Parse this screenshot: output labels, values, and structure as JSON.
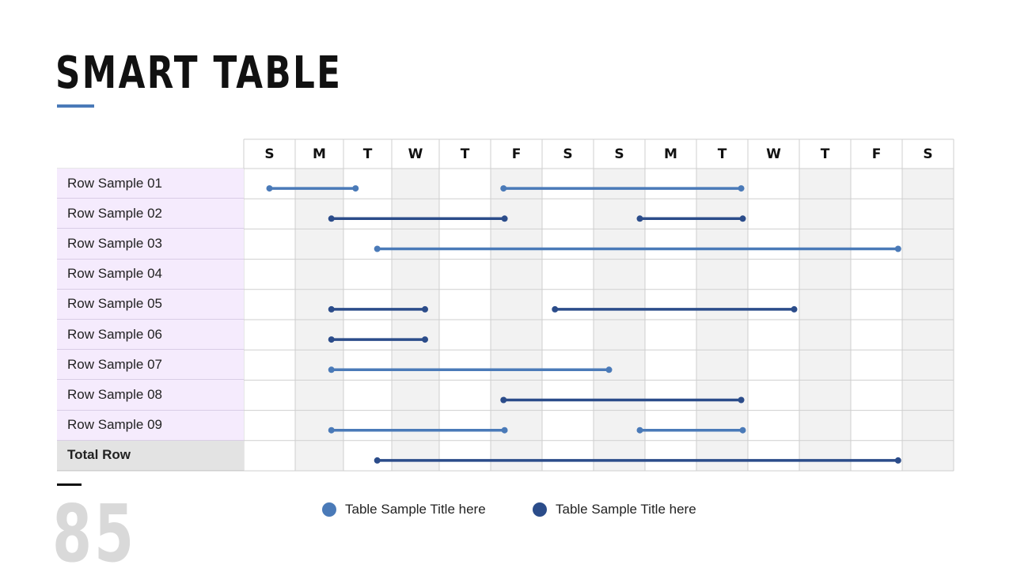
{
  "title": "SMART TABLE",
  "page_number": "85",
  "days": [
    "S",
    "M",
    "T",
    "W",
    "T",
    "F",
    "S",
    "S",
    "M",
    "T",
    "W",
    "T",
    "F",
    "S"
  ],
  "rows": [
    {
      "label": "Row Sample 01",
      "segments": [
        {
          "from": 0.5,
          "to": 2.25,
          "color": "light"
        },
        {
          "from": 5.25,
          "to": 9.87,
          "color": "light"
        }
      ]
    },
    {
      "label": "Row Sample 02",
      "segments": [
        {
          "from": 1.75,
          "to": 5.27,
          "color": "dark"
        },
        {
          "from": 7.9,
          "to": 9.9,
          "color": "dark"
        }
      ]
    },
    {
      "label": "Row Sample 03",
      "segments": [
        {
          "from": 2.7,
          "to": 12.92,
          "color": "light"
        }
      ]
    },
    {
      "label": "Row Sample 04",
      "segments": []
    },
    {
      "label": "Row Sample 05",
      "segments": [
        {
          "from": 1.75,
          "to": 3.7,
          "color": "dark"
        },
        {
          "from": 6.25,
          "to": 10.9,
          "color": "dark"
        }
      ]
    },
    {
      "label": "Row Sample 06",
      "segments": [
        {
          "from": 1.75,
          "to": 3.7,
          "color": "dark"
        }
      ]
    },
    {
      "label": "Row Sample 07",
      "segments": [
        {
          "from": 1.75,
          "to": 7.3,
          "color": "light"
        }
      ]
    },
    {
      "label": "Row Sample 08",
      "segments": [
        {
          "from": 5.25,
          "to": 9.87,
          "color": "dark"
        }
      ]
    },
    {
      "label": "Row Sample 09",
      "segments": [
        {
          "from": 1.75,
          "to": 5.27,
          "color": "light"
        },
        {
          "from": 7.9,
          "to": 9.9,
          "color": "light"
        }
      ]
    }
  ],
  "total_row": {
    "label": "Total Row",
    "segments": [
      {
        "from": 2.7,
        "to": 12.92,
        "color": "dark"
      }
    ]
  },
  "legend": [
    {
      "label": "Table Sample Title here",
      "color": "#4a7ab8"
    },
    {
      "label": "Table Sample Title here",
      "color": "#2b4c8a"
    }
  ],
  "colors": {
    "light": "#4a7ab8",
    "dark": "#2b4c8a",
    "shade": "#f2f2f2",
    "grid": "#cfcfcf"
  }
}
